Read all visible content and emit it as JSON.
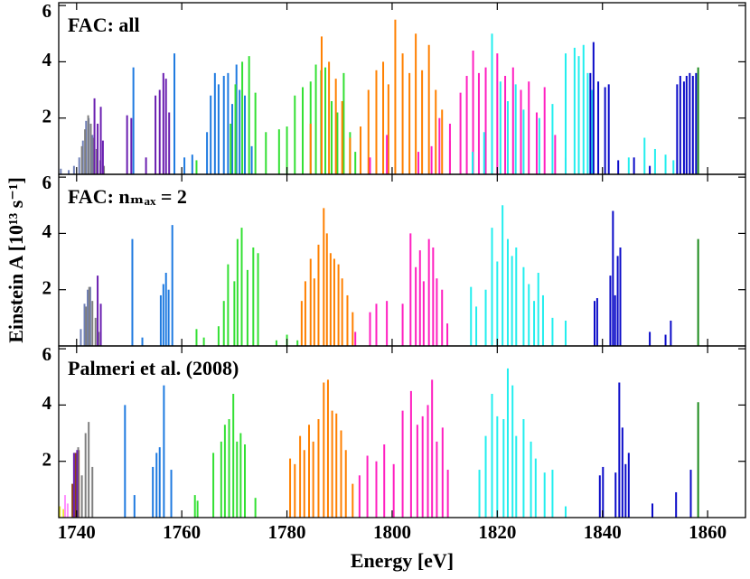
{
  "figure": {
    "ylabel": "Einstein A [10¹³ s⁻¹]"
  },
  "chart_data": [
    {
      "type": "stick",
      "title": "FAC: all",
      "ylim": [
        0,
        6.1
      ],
      "yticks": [
        2,
        4,
        6
      ],
      "series": [
        {
          "color": "#7080b8",
          "x": [
            1737,
            1738.5,
            1739.5,
            1740.5,
            1741.2,
            1741.8,
            1742.3,
            1743
          ],
          "values": [
            0.2,
            0.15,
            0.3,
            0.6,
            1.2,
            1.9,
            2.0,
            1.4
          ]
        },
        {
          "color": "#7f7f7f",
          "x": [
            1741,
            1741.6,
            1742.2,
            1742.7,
            1743.2,
            1743.8,
            1744.5,
            1745.2
          ],
          "values": [
            1.0,
            1.6,
            2.1,
            1.8,
            1.3,
            0.9,
            0.5,
            0.3
          ]
        },
        {
          "color": "#6a1fb0",
          "x": [
            1743.4,
            1744,
            1744.6,
            1745,
            1749.6,
            1750.4,
            1753.2,
            1755,
            1755.8,
            1756.5,
            1757,
            1757.6
          ],
          "values": [
            2.7,
            1.8,
            2.4,
            1.2,
            2.1,
            2.0,
            0.6,
            2.8,
            3.0,
            3.6,
            3.4,
            2.2
          ]
        },
        {
          "color": "#1e7ae0",
          "x": [
            1750.8,
            1758.6,
            1760.5,
            1762,
            1764.8,
            1765.5,
            1766.3,
            1767,
            1768,
            1768.8,
            1769.6,
            1770.4,
            1771,
            1772,
            1773.3
          ],
          "values": [
            3.8,
            4.3,
            0.6,
            0.7,
            1.5,
            2.8,
            3.6,
            3.2,
            3.5,
            3.6,
            2.5,
            3.9,
            3.0,
            2.8,
            1.0
          ]
        },
        {
          "color": "#33e033",
          "x": [
            1762.8,
            1769.3,
            1770.2,
            1771.5,
            1772.8,
            1774,
            1776,
            1778.5,
            1780,
            1781.5,
            1783,
            1784.5,
            1785.5,
            1786.5,
            1787.3,
            1788.5,
            1789.6,
            1790.8,
            1792,
            1793
          ],
          "values": [
            0.5,
            1.8,
            3.2,
            4.0,
            4.2,
            2.9,
            1.5,
            1.6,
            1.7,
            2.8,
            3.1,
            3.3,
            3.9,
            3.7,
            3.8,
            2.6,
            2.2,
            3.6,
            1.5,
            0.8
          ]
        },
        {
          "color": "#ff8000",
          "x": [
            1784.5,
            1786.6,
            1788,
            1789.3,
            1790.5,
            1792,
            1794,
            1795.5,
            1797,
            1798.3,
            1799.3,
            1800.6,
            1802,
            1803.3,
            1804.5,
            1805.7,
            1807,
            1808.3,
            1809.5,
            1811
          ],
          "values": [
            1.8,
            4.9,
            4.0,
            3.4,
            2.6,
            1.3,
            1.7,
            3.0,
            3.7,
            4.0,
            3.2,
            5.5,
            4.3,
            3.6,
            5.0,
            3.7,
            4.6,
            3.0,
            2.3,
            1.2
          ]
        },
        {
          "color": "#ff1fc0",
          "x": [
            1795.8,
            1799,
            1805,
            1807.5,
            1809,
            1811,
            1813,
            1814.2,
            1815.4,
            1816.5,
            1817.8,
            1819,
            1820,
            1821.5,
            1823,
            1824.5,
            1826,
            1827.5,
            1829,
            1831,
            1833
          ],
          "values": [
            0.6,
            1.4,
            0.8,
            1.0,
            2.0,
            1.8,
            2.9,
            3.5,
            4.4,
            3.6,
            3.8,
            4.1,
            4.3,
            3.5,
            3.8,
            3.0,
            3.3,
            2.2,
            3.1,
            1.4,
            0.6
          ]
        },
        {
          "color": "#22eeee",
          "x": [
            1815.3,
            1817.5,
            1819,
            1820.6,
            1822,
            1823.5,
            1825,
            1828,
            1830.5,
            1833,
            1834.7,
            1835.5,
            1836.4,
            1837.2,
            1838,
            1845,
            1848,
            1850,
            1852,
            1853.5
          ],
          "values": [
            0.8,
            1.5,
            5.0,
            3.3,
            2.6,
            3.2,
            2.3,
            2.0,
            2.5,
            4.3,
            4.5,
            4.2,
            4.6,
            3.6,
            3.0,
            0.6,
            1.3,
            0.9,
            0.7,
            0.5
          ]
        },
        {
          "color": "#0a0ac8",
          "x": [
            1837.7,
            1838.3,
            1839.2,
            1840.5,
            1841.2,
            1843,
            1846,
            1849,
            1854.2,
            1854.8,
            1855.5,
            1856,
            1856.6,
            1857.2,
            1857.8
          ],
          "values": [
            3.6,
            4.7,
            3.3,
            3.1,
            3.2,
            0.5,
            0.6,
            0.3,
            3.2,
            3.5,
            3.3,
            3.5,
            3.6,
            3.5,
            3.6
          ]
        },
        {
          "color": "#1a8a1a",
          "x": [
            1858.2
          ],
          "values": [
            3.8
          ]
        }
      ]
    },
    {
      "type": "stick",
      "title": "FAC: nₘₐₓ = 2",
      "ylim": [
        0,
        6.1
      ],
      "yticks": [
        2,
        4,
        6
      ],
      "series": [
        {
          "color": "#7080b8",
          "x": [
            1740.8,
            1741.5,
            1742.1,
            1742.6
          ],
          "values": [
            0.6,
            1.5,
            2.0,
            2.1
          ]
        },
        {
          "color": "#7f7f7f",
          "x": [
            1741.8,
            1742.4,
            1743,
            1743.6,
            1744.2
          ],
          "values": [
            1.4,
            2.1,
            1.6,
            1.0,
            0.5
          ]
        },
        {
          "color": "#6a1fb0",
          "x": [
            1744,
            1744.6
          ],
          "values": [
            2.5,
            1.5
          ]
        },
        {
          "color": "#1e7ae0",
          "x": [
            1750.6,
            1752.5,
            1756,
            1756.5,
            1757,
            1757.5,
            1758.2
          ],
          "values": [
            3.8,
            0.3,
            1.8,
            2.2,
            2.6,
            2.0,
            4.3
          ]
        },
        {
          "color": "#33e033",
          "x": [
            1762.8,
            1764.2,
            1767,
            1768,
            1768.8,
            1770,
            1770.6,
            1771.4,
            1772.5,
            1773.6,
            1774.5,
            1778,
            1780,
            1782
          ],
          "values": [
            0.6,
            0.3,
            0.7,
            1.6,
            2.9,
            2.3,
            3.8,
            4.2,
            2.7,
            3.5,
            3.3,
            0.2,
            0.4,
            0.2
          ]
        },
        {
          "color": "#ff8000",
          "x": [
            1782.8,
            1783.5,
            1784.5,
            1785.2,
            1786,
            1787,
            1787.6,
            1788.3,
            1789,
            1789.8,
            1790.5,
            1791.5,
            1792.5
          ],
          "values": [
            1.6,
            2.3,
            3.1,
            2.4,
            3.6,
            4.9,
            4.0,
            3.3,
            3.1,
            2.9,
            2.4,
            1.8,
            1.2
          ]
        },
        {
          "color": "#ff1fc0",
          "x": [
            1793,
            1795.8,
            1797,
            1799,
            1802,
            1803.5,
            1804.5,
            1805.3,
            1806,
            1807,
            1807.8,
            1808.5,
            1809.5,
            1810.5
          ],
          "values": [
            0.5,
            1.2,
            1.5,
            1.6,
            1.5,
            4.0,
            2.8,
            3.4,
            2.3,
            3.8,
            3.5,
            2.4,
            2.0,
            0.8
          ]
        },
        {
          "color": "#22eeee",
          "x": [
            1815,
            1816,
            1817.8,
            1819,
            1820,
            1821,
            1822,
            1822.8,
            1823.6,
            1825,
            1826,
            1827,
            1827.8,
            1828.7,
            1830.5,
            1833
          ],
          "values": [
            2.1,
            1.4,
            2.0,
            4.2,
            3.0,
            5.0,
            3.8,
            3.2,
            3.5,
            2.8,
            2.2,
            1.6,
            2.6,
            1.8,
            1.0,
            0.9
          ]
        },
        {
          "color": "#0a0ac8",
          "x": [
            1838.5,
            1839,
            1841.5,
            1842,
            1842.4,
            1842.9,
            1843.4,
            1849,
            1852,
            1853
          ],
          "values": [
            1.6,
            1.7,
            2.5,
            4.8,
            1.8,
            3.2,
            3.5,
            0.5,
            0.4,
            0.9
          ]
        },
        {
          "color": "#1a8a1a",
          "x": [
            1858.2
          ],
          "values": [
            3.8
          ]
        }
      ]
    },
    {
      "type": "stick",
      "title": "Palmeri et al. (2008)",
      "xlabel": "Energy [eV]",
      "xlim": [
        1736.6,
        1867.2
      ],
      "xticks": [
        1740,
        1760,
        1780,
        1800,
        1820,
        1840,
        1860
      ],
      "ylim": [
        0,
        6.1
      ],
      "yticks": [
        2,
        4,
        6
      ],
      "series": [
        {
          "color": "#e8e830",
          "x": [
            1736.8,
            1737.5
          ],
          "values": [
            0.4,
            0.3
          ]
        },
        {
          "color": "#ff90ff",
          "x": [
            1737.8,
            1738.3
          ],
          "values": [
            0.8,
            0.5
          ]
        },
        {
          "color": "#8b4513",
          "x": [
            1739.2,
            1739.8,
            1740.4
          ],
          "values": [
            1.2,
            2.3,
            2.4
          ]
        },
        {
          "color": "#7f7f7f",
          "x": [
            1740.3,
            1741,
            1741.7,
            1742.3,
            1743
          ],
          "values": [
            2.5,
            1.5,
            3.0,
            3.4,
            1.8
          ]
        },
        {
          "color": "#6a1fb0",
          "x": [
            1739.5,
            1740.1
          ],
          "values": [
            2.3,
            2.4
          ]
        },
        {
          "color": "#1e7ae0",
          "x": [
            1749.2,
            1751,
            1754.5,
            1755.2,
            1755.8,
            1756.6,
            1758
          ],
          "values": [
            4.0,
            0.8,
            1.8,
            2.3,
            2.5,
            4.7,
            1.7
          ]
        },
        {
          "color": "#33e033",
          "x": [
            1762.5,
            1763,
            1766,
            1767.5,
            1768.2,
            1769,
            1769.8,
            1770.5,
            1771.2,
            1772,
            1774
          ],
          "values": [
            0.8,
            0.6,
            2.3,
            2.7,
            3.3,
            3.5,
            4.4,
            2.7,
            3.0,
            2.6,
            0.7
          ]
        },
        {
          "color": "#ff8000",
          "x": [
            1780.6,
            1781.5,
            1782.5,
            1783.3,
            1784.2,
            1785,
            1786,
            1787,
            1787.8,
            1788.6,
            1789.4,
            1790.3,
            1791.2,
            1792.5
          ],
          "values": [
            2.1,
            1.9,
            2.9,
            2.4,
            3.3,
            2.7,
            3.5,
            4.8,
            4.9,
            3.8,
            3.7,
            3.1,
            2.4,
            1.2
          ]
        },
        {
          "color": "#ff1fc0",
          "x": [
            1793.8,
            1795.3,
            1797,
            1798.5,
            1800.3,
            1802,
            1803.6,
            1804.8,
            1805.8,
            1806.8,
            1807.6,
            1808.5,
            1809.6,
            1810.6
          ],
          "values": [
            1.5,
            2.2,
            2.0,
            2.6,
            1.9,
            3.8,
            4.5,
            3.3,
            3.6,
            4.0,
            4.9,
            2.7,
            3.2,
            1.7
          ]
        },
        {
          "color": "#22eeee",
          "x": [
            1816.6,
            1817.8,
            1819,
            1820,
            1821.2,
            1822,
            1822.9,
            1823.6,
            1825,
            1826.4,
            1827.3,
            1829,
            1830.5,
            1833
          ],
          "values": [
            1.7,
            2.9,
            4.4,
            3.6,
            3.5,
            5.3,
            4.7,
            2.9,
            3.5,
            2.7,
            2.1,
            1.6,
            1.7,
            0.4
          ]
        },
        {
          "color": "#0a0ac8",
          "x": [
            1839.5,
            1840.1,
            1842.5,
            1843.2,
            1843.8,
            1844.4,
            1845,
            1849.5,
            1854,
            1856.8
          ],
          "values": [
            1.5,
            1.8,
            1.6,
            4.8,
            3.2,
            1.9,
            2.3,
            0.5,
            0.9,
            1.7
          ]
        },
        {
          "color": "#1a8a1a",
          "x": [
            1858.2
          ],
          "values": [
            4.1
          ]
        }
      ]
    }
  ]
}
